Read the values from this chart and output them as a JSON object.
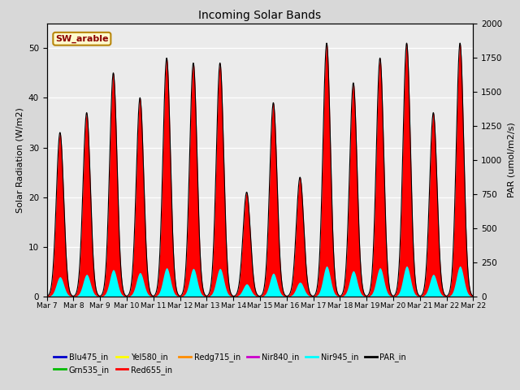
{
  "title": "Incoming Solar Bands",
  "ylabel_left": "Solar Radiation (W/m2)",
  "ylabel_right": "PAR (umol/m2/s)",
  "ylim_left": [
    0,
    55
  ],
  "ylim_right": [
    0,
    2000
  ],
  "annotation_text": "SW_arable",
  "annotation_color": "#8B0000",
  "annotation_bg": "#FFFACD",
  "annotation_border": "#B8860B",
  "x_tick_labels": [
    "Mar 7",
    "Mar 8",
    "Mar 9",
    "Mar 10",
    "Mar 11",
    "Mar 12",
    "Mar 13",
    "Mar 14",
    "Mar 15",
    "Mar 16",
    "Mar 17",
    "Mar 18",
    "Mar 19",
    "Mar 20",
    "Mar 21",
    "Mar 22"
  ],
  "bg_color": "#D8D8D8",
  "plot_bg": "#EBEBEB",
  "series_colors": {
    "Blu475_in": "#0000CC",
    "Grn535_in": "#00BB00",
    "Yel580_in": "#FFFF00",
    "Red655_in": "#FF0000",
    "Redg715_in": "#FF8C00",
    "Nir840_in": "#CC00CC",
    "Nir945_in": "#00FFFF",
    "PAR_in": "#000000"
  },
  "n_days": 16,
  "samples_per_day": 96,
  "day_peaks_red": [
    33,
    37,
    45,
    40,
    48,
    47,
    47,
    21,
    39,
    24,
    51,
    43,
    48,
    51,
    37,
    51
  ],
  "par_scale": 36.4
}
